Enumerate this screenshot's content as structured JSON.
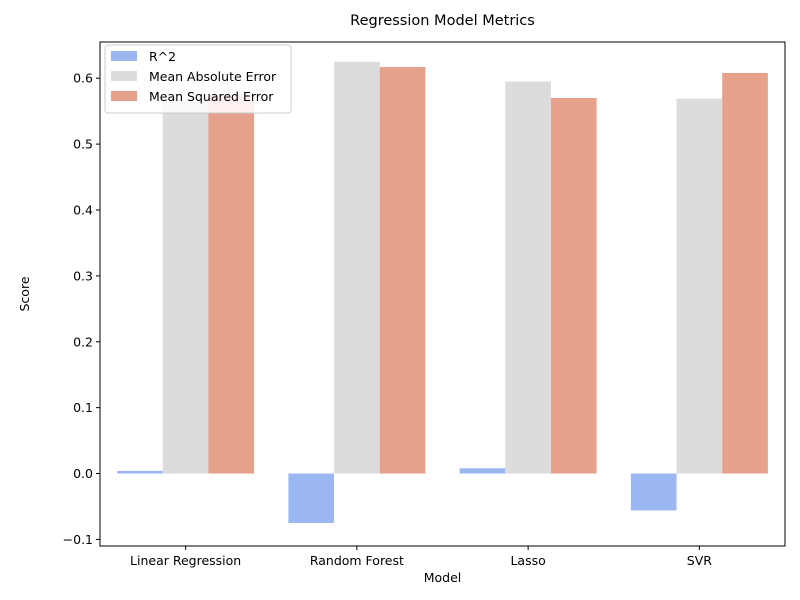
{
  "chart_data": {
    "type": "bar",
    "title": "Regression Model Metrics",
    "xlabel": "Model",
    "ylabel": "Score",
    "categories": [
      "Linear Regression",
      "Random Forest",
      "Lasso",
      "SVR"
    ],
    "series": [
      {
        "name": "R^2",
        "values": [
          0.004,
          -0.075,
          0.008,
          -0.056
        ],
        "color": "#9ab7f2"
      },
      {
        "name": "Mean Absolute Error",
        "values": [
          0.57,
          0.625,
          0.595,
          0.569
        ],
        "color": "#dcdcdc"
      },
      {
        "name": "Mean Squared Error",
        "values": [
          0.575,
          0.617,
          0.57,
          0.608
        ],
        "color": "#e6a18b"
      }
    ],
    "ylim": [
      -0.11,
      0.655
    ],
    "yticks": [
      -0.1,
      0.0,
      0.1,
      0.2,
      0.3,
      0.4,
      0.5,
      0.6
    ],
    "ytick_labels": [
      "−0.1",
      "0.0",
      "0.1",
      "0.2",
      "0.3",
      "0.4",
      "0.5",
      "0.6"
    ],
    "grid": false,
    "legend_position": "top-left"
  }
}
